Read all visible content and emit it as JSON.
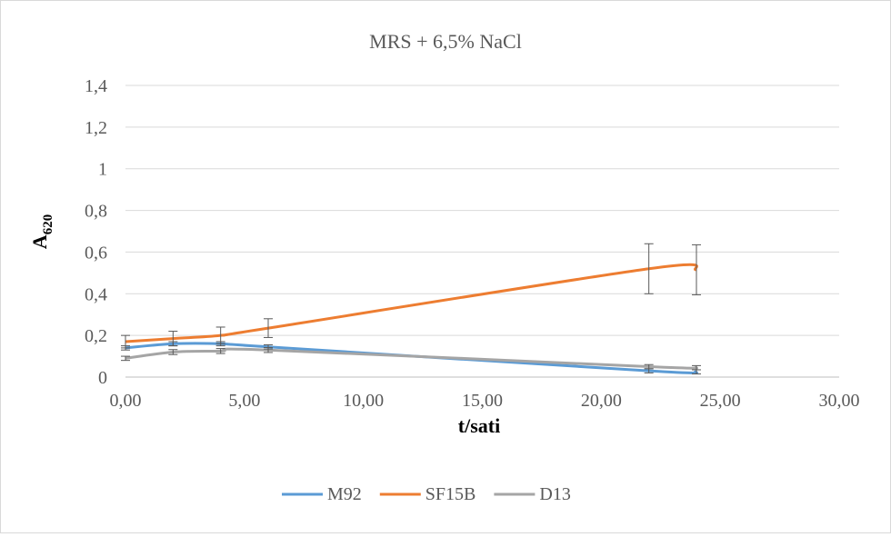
{
  "chart_data": {
    "type": "line",
    "title": "MRS + 6,5% NaCl",
    "xlabel": "t/sati",
    "ylabel_main": "A",
    "ylabel_sub": "620",
    "xlim": [
      0,
      30
    ],
    "ylim": [
      0,
      1.4
    ],
    "x_ticks": [
      "0,00",
      "5,00",
      "10,00",
      "15,00",
      "20,00",
      "25,00",
      "30,00"
    ],
    "y_ticks": [
      "0",
      "0,2",
      "0,4",
      "0,6",
      "0,8",
      "1",
      "1,2",
      "1,4"
    ],
    "grid": true,
    "legend_position": "bottom",
    "series": [
      {
        "name": "M92",
        "color": "#5b9bd5",
        "x": [
          0,
          2,
          4,
          6,
          22,
          24
        ],
        "y": [
          0.14,
          0.16,
          0.16,
          0.145,
          0.03,
          0.025
        ],
        "err": [
          0.01,
          0.01,
          0.01,
          0.01,
          0.01,
          0.01
        ]
      },
      {
        "name": "SF15B",
        "color": "#ed7d31",
        "x": [
          0,
          2,
          4,
          6,
          22,
          24
        ],
        "y": [
          0.17,
          0.185,
          0.2,
          0.235,
          0.52,
          0.515
        ],
        "err": [
          0.03,
          0.035,
          0.04,
          0.045,
          0.12,
          0.12
        ]
      },
      {
        "name": "D13",
        "color": "#a5a5a5",
        "x": [
          0,
          2,
          4,
          6,
          22,
          24
        ],
        "y": [
          0.09,
          0.12,
          0.125,
          0.13,
          0.05,
          0.045
        ],
        "err": [
          0.01,
          0.012,
          0.012,
          0.012,
          0.01,
          0.01
        ]
      }
    ]
  }
}
